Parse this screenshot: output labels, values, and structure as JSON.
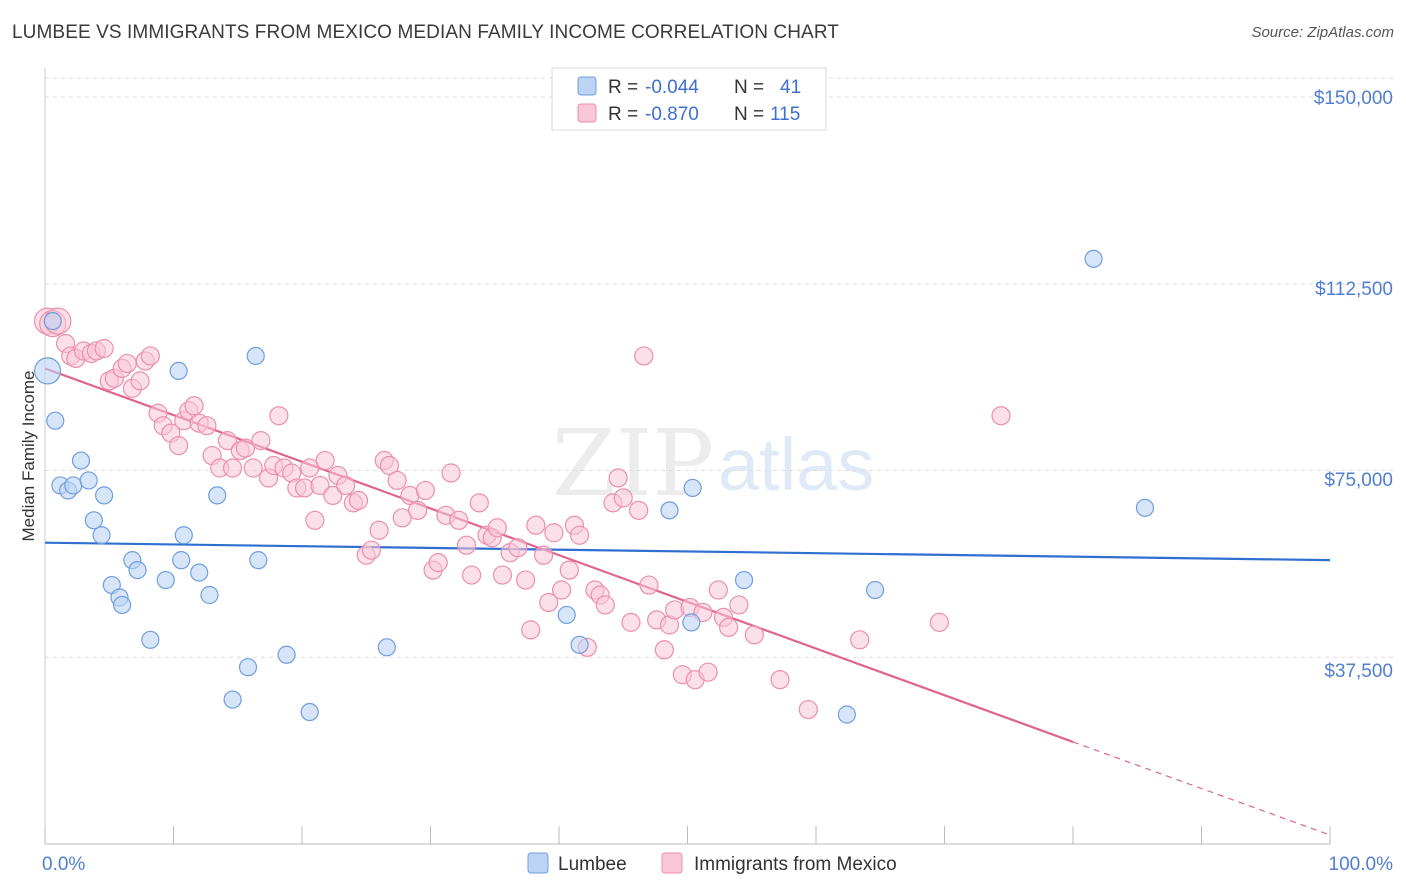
{
  "title": "LUMBEE VS IMMIGRANTS FROM MEXICO MEDIAN FAMILY INCOME CORRELATION CHART",
  "source": "Source: ZipAtlas.com",
  "watermark": {
    "zip": "ZIP",
    "atlas": "atlas"
  },
  "colors": {
    "lumbee_fill": "#bcd4f3",
    "lumbee_stroke": "#6f9ee0",
    "lumbee_line": "#2f6fd0",
    "mexico_fill": "#f9c7d7",
    "mexico_stroke": "#ec8eae",
    "mexico_line": "#e0648e",
    "grid": "#dddddd",
    "tick_text": "#4f7fd0"
  },
  "legend_top": [
    {
      "r_label": "R =",
      "r_value": "-0.044",
      "n_label": "N =",
      "n_value": "41"
    },
    {
      "r_label": "R =",
      "r_value": "-0.870",
      "n_label": "N =",
      "n_value": "115"
    }
  ],
  "legend_bottom": [
    "Lumbee",
    "Immigrants from Mexico"
  ],
  "chart_data": {
    "type": "scatter",
    "title": "LUMBEE VS IMMIGRANTS FROM MEXICO MEDIAN FAMILY INCOME CORRELATION CHART",
    "xlabel": "",
    "ylabel": "Median Family Income",
    "xlim": [
      0,
      100
    ],
    "ylim": [
      0,
      150000
    ],
    "x_tick_labels": [
      "0.0%",
      "100.0%"
    ],
    "y_ticks": [
      37500,
      75000,
      112500,
      150000
    ],
    "y_tick_labels": [
      "$37,500",
      "$75,000",
      "$112,500",
      "$150,000"
    ],
    "series": [
      {
        "name": "Lumbee",
        "r": -0.044,
        "n": 41,
        "trend": {
          "x": [
            0,
            100
          ],
          "y": [
            60500,
            57000
          ]
        },
        "points": [
          [
            0.2,
            95000
          ],
          [
            0.8,
            85000
          ],
          [
            1.2,
            72000
          ],
          [
            1.8,
            71000
          ],
          [
            2.2,
            72000
          ],
          [
            2.8,
            77000
          ],
          [
            3.4,
            73000
          ],
          [
            3.8,
            65000
          ],
          [
            4.4,
            62000
          ],
          [
            4.6,
            70000
          ],
          [
            5.2,
            52000
          ],
          [
            5.8,
            49500
          ],
          [
            6.0,
            48000
          ],
          [
            6.8,
            57000
          ],
          [
            7.2,
            55000
          ],
          [
            8.2,
            41000
          ],
          [
            9.4,
            53000
          ],
          [
            10.4,
            95000
          ],
          [
            10.6,
            57000
          ],
          [
            10.8,
            62000
          ],
          [
            12.0,
            54500
          ],
          [
            12.8,
            50000
          ],
          [
            13.4,
            70000
          ],
          [
            14.6,
            29000
          ],
          [
            15.8,
            35500
          ],
          [
            16.4,
            98000
          ],
          [
            16.6,
            57000
          ],
          [
            18.8,
            38000
          ],
          [
            20.6,
            26500
          ],
          [
            26.6,
            39500
          ],
          [
            40.6,
            46000
          ],
          [
            41.6,
            40000
          ],
          [
            48.6,
            67000
          ],
          [
            50.3,
            44500
          ],
          [
            50.4,
            71500
          ],
          [
            54.4,
            53000
          ],
          [
            64.6,
            51000
          ],
          [
            62.4,
            26000
          ],
          [
            81.6,
            117500
          ],
          [
            85.6,
            67500
          ],
          [
            0.6,
            105000
          ]
        ]
      },
      {
        "name": "Immigrants from Mexico",
        "r": -0.87,
        "n": 115,
        "trend": {
          "x": [
            0,
            80
          ],
          "y": [
            95500,
            20500
          ]
        },
        "trend_dashed": {
          "x": [
            80,
            100
          ],
          "y": [
            20500,
            1800
          ]
        },
        "points": [
          [
            0.2,
            105000
          ],
          [
            0.6,
            104500
          ],
          [
            1.0,
            105000
          ],
          [
            1.6,
            100500
          ],
          [
            2.0,
            98000
          ],
          [
            2.4,
            97500
          ],
          [
            3.0,
            99000
          ],
          [
            3.6,
            98500
          ],
          [
            4.0,
            99000
          ],
          [
            4.6,
            99500
          ],
          [
            5.0,
            93000
          ],
          [
            5.4,
            93500
          ],
          [
            6.0,
            95500
          ],
          [
            6.4,
            96500
          ],
          [
            6.8,
            91500
          ],
          [
            7.4,
            93000
          ],
          [
            7.8,
            97000
          ],
          [
            8.2,
            98000
          ],
          [
            8.8,
            86500
          ],
          [
            9.2,
            84000
          ],
          [
            9.8,
            82500
          ],
          [
            10.4,
            80000
          ],
          [
            10.8,
            85000
          ],
          [
            11.2,
            87000
          ],
          [
            11.6,
            88000
          ],
          [
            12.0,
            84500
          ],
          [
            12.6,
            84000
          ],
          [
            13.0,
            78000
          ],
          [
            13.6,
            75500
          ],
          [
            14.2,
            81000
          ],
          [
            14.6,
            75500
          ],
          [
            15.2,
            79000
          ],
          [
            15.6,
            79500
          ],
          [
            16.2,
            75500
          ],
          [
            16.8,
            81000
          ],
          [
            17.4,
            73500
          ],
          [
            17.8,
            76000
          ],
          [
            18.2,
            86000
          ],
          [
            18.6,
            75500
          ],
          [
            19.2,
            74500
          ],
          [
            19.6,
            71500
          ],
          [
            20.2,
            71500
          ],
          [
            20.6,
            75500
          ],
          [
            21.0,
            65000
          ],
          [
            21.4,
            72000
          ],
          [
            21.8,
            77000
          ],
          [
            22.4,
            70000
          ],
          [
            22.8,
            74000
          ],
          [
            23.4,
            72000
          ],
          [
            24.0,
            68500
          ],
          [
            24.4,
            69000
          ],
          [
            25.0,
            58000
          ],
          [
            25.4,
            59000
          ],
          [
            26.0,
            63000
          ],
          [
            26.4,
            77000
          ],
          [
            26.8,
            76000
          ],
          [
            27.4,
            73000
          ],
          [
            27.8,
            65500
          ],
          [
            28.4,
            70000
          ],
          [
            29.0,
            67000
          ],
          [
            29.6,
            71000
          ],
          [
            30.2,
            55000
          ],
          [
            30.6,
            56500
          ],
          [
            31.2,
            66000
          ],
          [
            31.6,
            74500
          ],
          [
            32.2,
            65000
          ],
          [
            32.8,
            60000
          ],
          [
            33.2,
            54000
          ],
          [
            33.8,
            68500
          ],
          [
            34.4,
            62000
          ],
          [
            34.8,
            61500
          ],
          [
            35.2,
            63500
          ],
          [
            35.6,
            54000
          ],
          [
            36.2,
            58500
          ],
          [
            36.8,
            59500
          ],
          [
            37.4,
            53000
          ],
          [
            37.8,
            43000
          ],
          [
            38.2,
            64000
          ],
          [
            38.8,
            58000
          ],
          [
            39.2,
            48500
          ],
          [
            39.6,
            62500
          ],
          [
            40.2,
            51000
          ],
          [
            40.8,
            55000
          ],
          [
            41.2,
            64000
          ],
          [
            41.6,
            62000
          ],
          [
            42.2,
            39500
          ],
          [
            42.8,
            51000
          ],
          [
            43.2,
            50000
          ],
          [
            43.6,
            48000
          ],
          [
            44.2,
            68500
          ],
          [
            44.6,
            73500
          ],
          [
            45.0,
            69500
          ],
          [
            45.6,
            44500
          ],
          [
            46.2,
            67000
          ],
          [
            46.6,
            98000
          ],
          [
            47.0,
            52000
          ],
          [
            47.6,
            45000
          ],
          [
            48.2,
            39000
          ],
          [
            48.6,
            44000
          ],
          [
            49.0,
            47000
          ],
          [
            49.6,
            34000
          ],
          [
            50.2,
            47500
          ],
          [
            50.6,
            33000
          ],
          [
            51.2,
            46500
          ],
          [
            51.6,
            34500
          ],
          [
            52.4,
            51000
          ],
          [
            52.8,
            45500
          ],
          [
            53.2,
            43500
          ],
          [
            54.0,
            48000
          ],
          [
            55.2,
            42000
          ],
          [
            57.2,
            33000
          ],
          [
            59.4,
            27000
          ],
          [
            63.4,
            41000
          ],
          [
            69.6,
            44500
          ],
          [
            74.4,
            86000
          ]
        ]
      }
    ]
  }
}
